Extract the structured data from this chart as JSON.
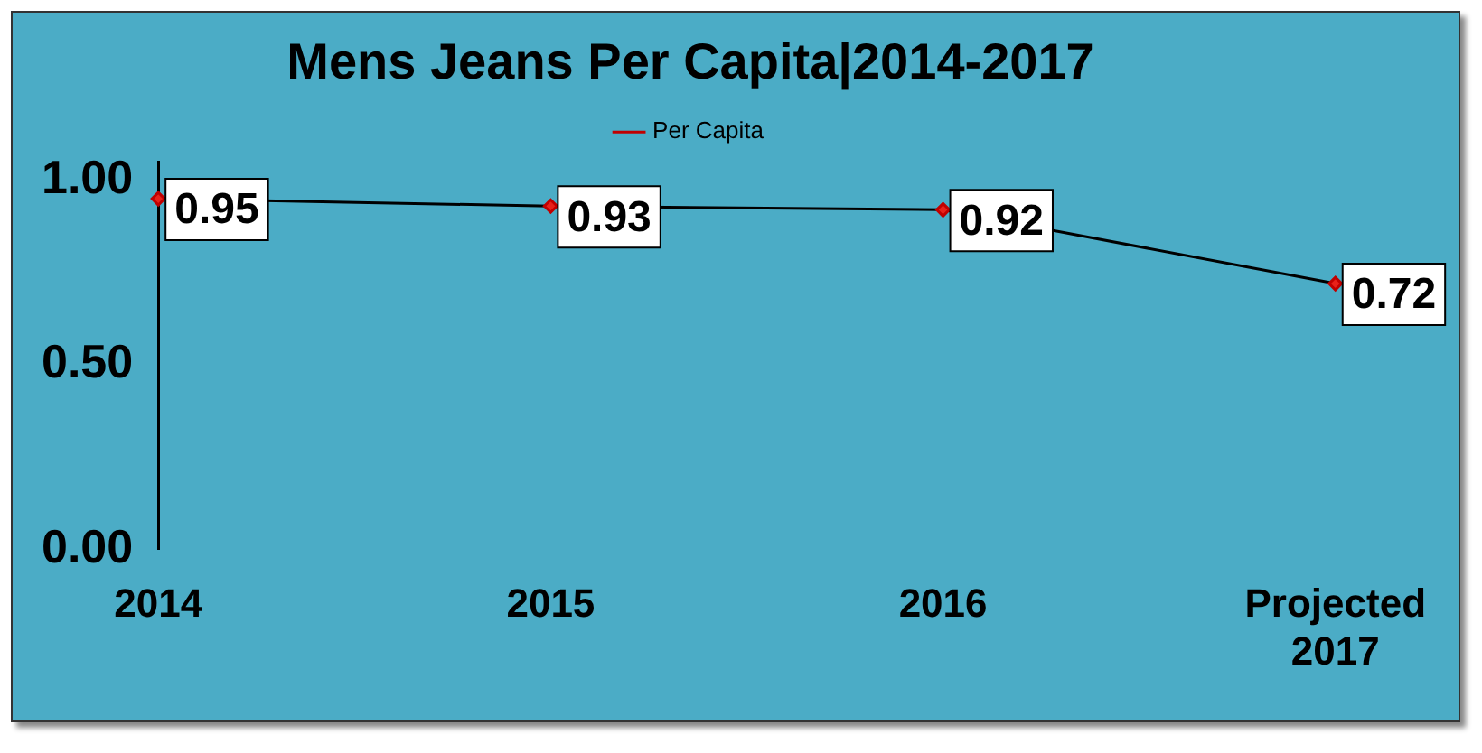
{
  "chart_data": {
    "type": "line",
    "title": "Mens Jeans Per Capita|2014-2017",
    "categories": [
      "2014",
      "2015",
      "2016",
      "Projected 2017"
    ],
    "series": [
      {
        "name": "Per Capita",
        "color": "#000000",
        "values": [
          0.95,
          0.93,
          0.92,
          0.72
        ]
      }
    ],
    "ylim": [
      0,
      1.05
    ],
    "yticks": [
      {
        "value": 0,
        "label": "0.00"
      },
      {
        "value": 0.5,
        "label": "0.50"
      },
      {
        "value": 1,
        "label": "1.00"
      }
    ],
    "grid": false,
    "legend": "top",
    "marker": "diamond",
    "line_style": "solid",
    "data_labels": true
  }
}
